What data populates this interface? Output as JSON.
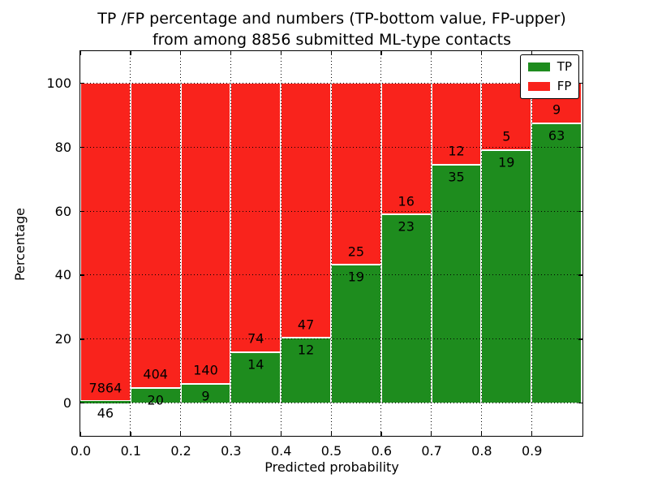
{
  "chart_data": {
    "type": "bar",
    "stacked": true,
    "title_line1": "TP /FP percentage and numbers (TP-bottom value, FP-upper)",
    "title_line2": "from among 8856 submitted ML-type contacts",
    "xlabel": "Predicted probability",
    "ylabel": "Percentage",
    "total_submitted_contacts": 8856,
    "xlim": [
      0.0,
      1.0
    ],
    "ylim": [
      -10,
      110
    ],
    "bin_width": 0.1,
    "grid": "dotted",
    "legend_position": "upper right",
    "xticks": [
      "0.0",
      "0.1",
      "0.2",
      "0.3",
      "0.4",
      "0.5",
      "0.6",
      "0.7",
      "0.8",
      "0.9"
    ],
    "yticks": [
      "0",
      "20",
      "40",
      "60",
      "80",
      "100"
    ],
    "categories": [
      "0.0-0.1",
      "0.1-0.2",
      "0.2-0.3",
      "0.3-0.4",
      "0.4-0.5",
      "0.5-0.6",
      "0.6-0.7",
      "0.7-0.8",
      "0.8-0.9",
      "0.9-1.0"
    ],
    "series": [
      {
        "name": "TP",
        "color": "#1e8c1e",
        "counts": [
          46,
          20,
          9,
          14,
          12,
          19,
          23,
          35,
          19,
          63
        ]
      },
      {
        "name": "FP",
        "color": "#f9231c",
        "counts": [
          7864,
          404,
          140,
          74,
          47,
          25,
          16,
          12,
          5,
          9
        ]
      }
    ],
    "tp_percent": [
      0.58,
      4.72,
      6.04,
      15.91,
      20.34,
      43.18,
      58.97,
      74.47,
      79.17,
      87.5
    ],
    "legend": {
      "entries": [
        {
          "label": "TP",
          "color": "#1e8c1e"
        },
        {
          "label": "FP",
          "color": "#f9231c"
        }
      ]
    }
  }
}
